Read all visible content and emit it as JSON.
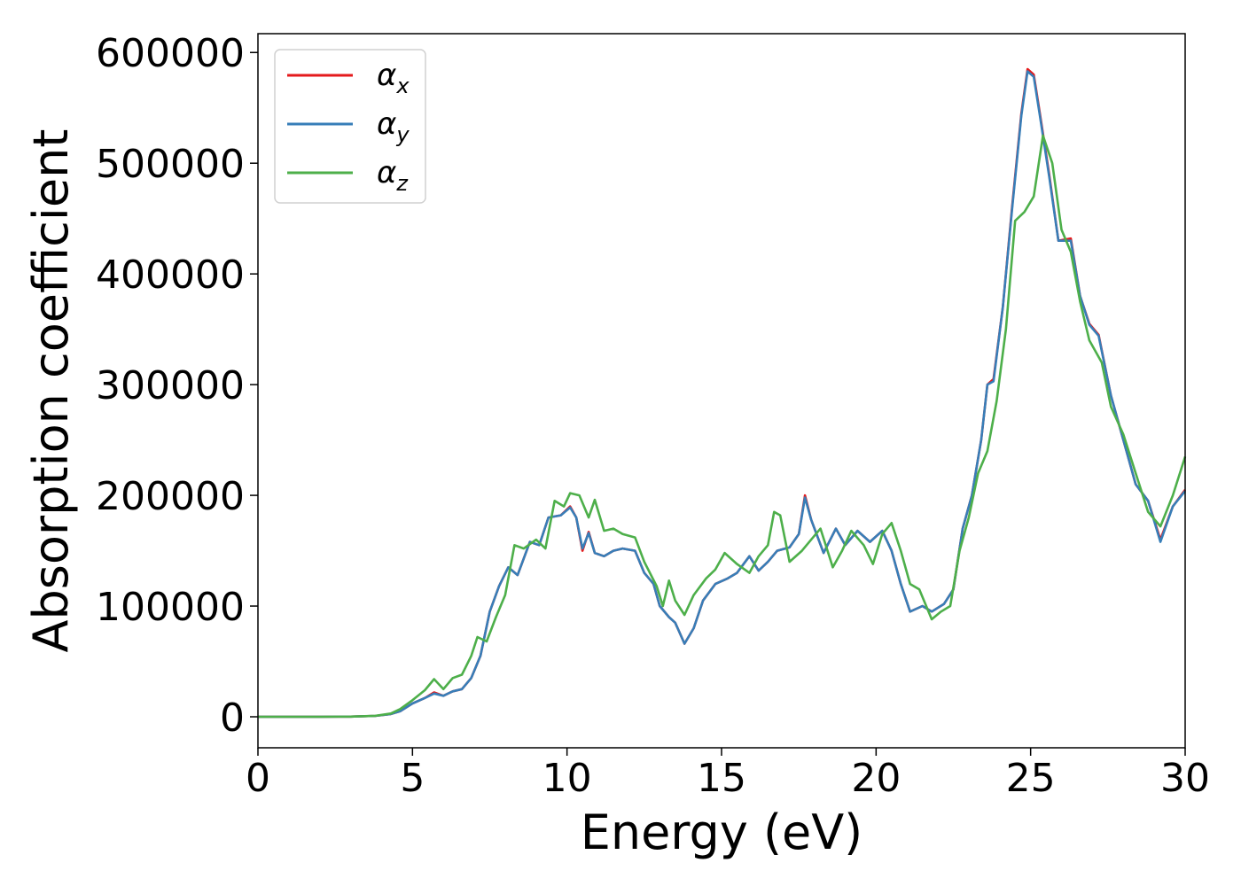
{
  "chart_data": {
    "type": "line",
    "xlabel": "Energy (eV)",
    "ylabel": "Absorption coefficient",
    "xlim": [
      0,
      30
    ],
    "ylim": [
      -28000,
      617000
    ],
    "x_ticks": [
      0,
      5,
      10,
      15,
      20,
      25,
      30
    ],
    "y_ticks": [
      0,
      100000,
      200000,
      300000,
      400000,
      500000,
      600000
    ],
    "grid": false,
    "legend": {
      "placement": "top-left"
    },
    "series": [
      {
        "name": "α",
        "subscript": "x",
        "color": "#e41a1c",
        "points": [
          [
            0,
            0
          ],
          [
            1,
            0
          ],
          [
            2,
            0
          ],
          [
            3,
            200
          ],
          [
            3.8,
            800
          ],
          [
            4.3,
            2500
          ],
          [
            4.6,
            5000
          ],
          [
            5.0,
            12000
          ],
          [
            5.4,
            17000
          ],
          [
            5.7,
            22000
          ],
          [
            6.0,
            19000
          ],
          [
            6.3,
            23000
          ],
          [
            6.6,
            25000
          ],
          [
            6.9,
            35000
          ],
          [
            7.2,
            55000
          ],
          [
            7.5,
            95000
          ],
          [
            7.8,
            118000
          ],
          [
            8.1,
            135000
          ],
          [
            8.4,
            128000
          ],
          [
            8.8,
            158000
          ],
          [
            9.1,
            155000
          ],
          [
            9.4,
            180000
          ],
          [
            9.8,
            182000
          ],
          [
            10.1,
            190000
          ],
          [
            10.3,
            180000
          ],
          [
            10.5,
            150000
          ],
          [
            10.7,
            167000
          ],
          [
            10.9,
            148000
          ],
          [
            11.2,
            145000
          ],
          [
            11.5,
            150000
          ],
          [
            11.8,
            152000
          ],
          [
            12.2,
            150000
          ],
          [
            12.5,
            130000
          ],
          [
            12.8,
            120000
          ],
          [
            13.0,
            100000
          ],
          [
            13.3,
            90000
          ],
          [
            13.5,
            85000
          ],
          [
            13.8,
            66000
          ],
          [
            14.1,
            80000
          ],
          [
            14.4,
            105000
          ],
          [
            14.8,
            120000
          ],
          [
            15.2,
            125000
          ],
          [
            15.5,
            130000
          ],
          [
            15.9,
            145000
          ],
          [
            16.2,
            132000
          ],
          [
            16.5,
            140000
          ],
          [
            16.8,
            150000
          ],
          [
            17.2,
            153000
          ],
          [
            17.5,
            165000
          ],
          [
            17.7,
            200000
          ],
          [
            17.9,
            178000
          ],
          [
            18.3,
            148000
          ],
          [
            18.7,
            170000
          ],
          [
            19.0,
            155000
          ],
          [
            19.4,
            168000
          ],
          [
            19.8,
            158000
          ],
          [
            20.2,
            168000
          ],
          [
            20.5,
            150000
          ],
          [
            20.8,
            120000
          ],
          [
            21.1,
            95000
          ],
          [
            21.5,
            100000
          ],
          [
            21.8,
            95000
          ],
          [
            22.2,
            102000
          ],
          [
            22.5,
            115000
          ],
          [
            22.8,
            170000
          ],
          [
            23.1,
            200000
          ],
          [
            23.4,
            250000
          ],
          [
            23.6,
            300000
          ],
          [
            23.8,
            305000
          ],
          [
            24.1,
            370000
          ],
          [
            24.4,
            460000
          ],
          [
            24.7,
            545000
          ],
          [
            24.9,
            585000
          ],
          [
            25.1,
            580000
          ],
          [
            25.3,
            545000
          ],
          [
            25.6,
            490000
          ],
          [
            25.9,
            430000
          ],
          [
            26.3,
            432000
          ],
          [
            26.6,
            380000
          ],
          [
            26.9,
            355000
          ],
          [
            27.2,
            345000
          ],
          [
            27.6,
            290000
          ],
          [
            28.0,
            250000
          ],
          [
            28.4,
            210000
          ],
          [
            28.8,
            195000
          ],
          [
            29.2,
            160000
          ],
          [
            29.6,
            190000
          ],
          [
            30.0,
            205000
          ]
        ]
      },
      {
        "name": "α",
        "subscript": "y",
        "color": "#377eb8",
        "points": [
          [
            0,
            0
          ],
          [
            1,
            0
          ],
          [
            2,
            0
          ],
          [
            3,
            200
          ],
          [
            3.8,
            800
          ],
          [
            4.3,
            2500
          ],
          [
            4.6,
            5000
          ],
          [
            5.0,
            12000
          ],
          [
            5.4,
            17000
          ],
          [
            5.7,
            21000
          ],
          [
            6.0,
            19000
          ],
          [
            6.3,
            23000
          ],
          [
            6.6,
            25000
          ],
          [
            6.9,
            35000
          ],
          [
            7.2,
            55000
          ],
          [
            7.5,
            95000
          ],
          [
            7.8,
            118000
          ],
          [
            8.1,
            135000
          ],
          [
            8.4,
            128000
          ],
          [
            8.8,
            158000
          ],
          [
            9.1,
            155000
          ],
          [
            9.4,
            180000
          ],
          [
            9.8,
            182000
          ],
          [
            10.1,
            189000
          ],
          [
            10.3,
            180000
          ],
          [
            10.5,
            152000
          ],
          [
            10.7,
            166000
          ],
          [
            10.9,
            148000
          ],
          [
            11.2,
            145000
          ],
          [
            11.5,
            150000
          ],
          [
            11.8,
            152000
          ],
          [
            12.2,
            150000
          ],
          [
            12.5,
            130000
          ],
          [
            12.8,
            120000
          ],
          [
            13.0,
            100000
          ],
          [
            13.3,
            90000
          ],
          [
            13.5,
            85000
          ],
          [
            13.8,
            66000
          ],
          [
            14.1,
            80000
          ],
          [
            14.4,
            105000
          ],
          [
            14.8,
            120000
          ],
          [
            15.2,
            125000
          ],
          [
            15.5,
            130000
          ],
          [
            15.9,
            145000
          ],
          [
            16.2,
            132000
          ],
          [
            16.5,
            140000
          ],
          [
            16.8,
            150000
          ],
          [
            17.2,
            153000
          ],
          [
            17.5,
            165000
          ],
          [
            17.7,
            198000
          ],
          [
            17.9,
            178000
          ],
          [
            18.3,
            148000
          ],
          [
            18.7,
            170000
          ],
          [
            19.0,
            155000
          ],
          [
            19.4,
            168000
          ],
          [
            19.8,
            158000
          ],
          [
            20.2,
            168000
          ],
          [
            20.5,
            150000
          ],
          [
            20.8,
            120000
          ],
          [
            21.1,
            95000
          ],
          [
            21.5,
            100000
          ],
          [
            21.8,
            95000
          ],
          [
            22.2,
            102000
          ],
          [
            22.5,
            115000
          ],
          [
            22.8,
            170000
          ],
          [
            23.1,
            200000
          ],
          [
            23.4,
            250000
          ],
          [
            23.6,
            300000
          ],
          [
            23.8,
            303000
          ],
          [
            24.1,
            370000
          ],
          [
            24.4,
            458000
          ],
          [
            24.7,
            543000
          ],
          [
            24.9,
            583000
          ],
          [
            25.1,
            578000
          ],
          [
            25.3,
            543000
          ],
          [
            25.6,
            488000
          ],
          [
            25.9,
            430000
          ],
          [
            26.3,
            430000
          ],
          [
            26.6,
            380000
          ],
          [
            26.9,
            354000
          ],
          [
            27.2,
            344000
          ],
          [
            27.6,
            290000
          ],
          [
            28.0,
            250000
          ],
          [
            28.4,
            210000
          ],
          [
            28.8,
            195000
          ],
          [
            29.2,
            158000
          ],
          [
            29.6,
            190000
          ],
          [
            30.0,
            204000
          ]
        ]
      },
      {
        "name": "α",
        "subscript": "z",
        "color": "#4daf4a",
        "points": [
          [
            0,
            0
          ],
          [
            1,
            0
          ],
          [
            2,
            0
          ],
          [
            3,
            200
          ],
          [
            3.8,
            900
          ],
          [
            4.3,
            3000
          ],
          [
            4.6,
            7000
          ],
          [
            5.0,
            15000
          ],
          [
            5.4,
            24000
          ],
          [
            5.7,
            34000
          ],
          [
            6.0,
            25000
          ],
          [
            6.3,
            35000
          ],
          [
            6.6,
            38000
          ],
          [
            6.9,
            55000
          ],
          [
            7.1,
            72000
          ],
          [
            7.4,
            68000
          ],
          [
            7.7,
            90000
          ],
          [
            8.0,
            110000
          ],
          [
            8.3,
            155000
          ],
          [
            8.6,
            152000
          ],
          [
            9.0,
            160000
          ],
          [
            9.3,
            152000
          ],
          [
            9.6,
            195000
          ],
          [
            9.9,
            190000
          ],
          [
            10.1,
            202000
          ],
          [
            10.4,
            200000
          ],
          [
            10.7,
            180000
          ],
          [
            10.9,
            196000
          ],
          [
            11.2,
            168000
          ],
          [
            11.5,
            170000
          ],
          [
            11.8,
            165000
          ],
          [
            12.2,
            162000
          ],
          [
            12.5,
            140000
          ],
          [
            12.9,
            118000
          ],
          [
            13.1,
            100000
          ],
          [
            13.3,
            123000
          ],
          [
            13.5,
            105000
          ],
          [
            13.8,
            92000
          ],
          [
            14.1,
            110000
          ],
          [
            14.5,
            125000
          ],
          [
            14.8,
            133000
          ],
          [
            15.1,
            148000
          ],
          [
            15.5,
            138000
          ],
          [
            15.9,
            130000
          ],
          [
            16.2,
            145000
          ],
          [
            16.5,
            155000
          ],
          [
            16.7,
            185000
          ],
          [
            16.9,
            182000
          ],
          [
            17.2,
            140000
          ],
          [
            17.6,
            150000
          ],
          [
            17.9,
            160000
          ],
          [
            18.2,
            170000
          ],
          [
            18.6,
            135000
          ],
          [
            18.9,
            150000
          ],
          [
            19.2,
            168000
          ],
          [
            19.6,
            155000
          ],
          [
            19.9,
            138000
          ],
          [
            20.2,
            165000
          ],
          [
            20.5,
            175000
          ],
          [
            20.8,
            150000
          ],
          [
            21.1,
            120000
          ],
          [
            21.4,
            115000
          ],
          [
            21.8,
            88000
          ],
          [
            22.1,
            95000
          ],
          [
            22.4,
            100000
          ],
          [
            22.7,
            150000
          ],
          [
            23.0,
            180000
          ],
          [
            23.3,
            220000
          ],
          [
            23.6,
            240000
          ],
          [
            23.9,
            285000
          ],
          [
            24.2,
            350000
          ],
          [
            24.5,
            448000
          ],
          [
            24.8,
            456000
          ],
          [
            25.1,
            470000
          ],
          [
            25.4,
            525000
          ],
          [
            25.7,
            500000
          ],
          [
            26.0,
            440000
          ],
          [
            26.3,
            420000
          ],
          [
            26.6,
            375000
          ],
          [
            26.9,
            340000
          ],
          [
            27.3,
            320000
          ],
          [
            27.6,
            280000
          ],
          [
            28.0,
            255000
          ],
          [
            28.4,
            220000
          ],
          [
            28.8,
            185000
          ],
          [
            29.2,
            172000
          ],
          [
            29.6,
            200000
          ],
          [
            30.0,
            235000
          ]
        ]
      }
    ]
  }
}
